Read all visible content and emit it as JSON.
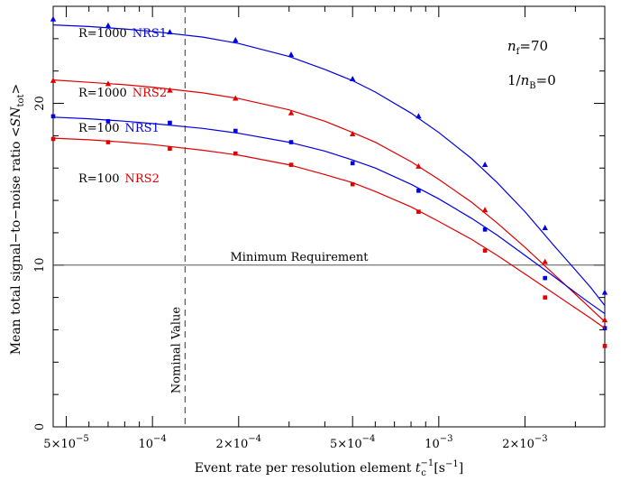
{
  "chart_data": {
    "type": "line",
    "xscale": "log",
    "xlim": [
      4.5e-05,
      0.0038
    ],
    "ylim": [
      0,
      26
    ],
    "xlabel": {
      "prefix": "Event rate per resolution element ",
      "sym": "t",
      "sub": "c",
      "sup": "−1",
      "unit": " [s",
      "unit_sup": "−1",
      "unit_end": "]"
    },
    "ylabel": {
      "prefix": "Mean total signal−to−noise ratio <",
      "sym": "SN",
      "sub": "tot",
      "suffix": ">"
    },
    "x_tick_labels": [
      {
        "x": 5e-05,
        "mant": "5×10",
        "exp": "−5"
      },
      {
        "x": 0.0001,
        "mant": "10",
        "exp": "−4"
      },
      {
        "x": 0.0002,
        "mant": "2×10",
        "exp": "−4"
      },
      {
        "x": 0.0005,
        "mant": "5×10",
        "exp": "−4"
      },
      {
        "x": 0.001,
        "mant": "10",
        "exp": "−3"
      },
      {
        "x": 0.002,
        "mant": "2×10",
        "exp": "−3"
      }
    ],
    "x_minor_ticks": [
      6e-05,
      7e-05,
      8e-05,
      9e-05,
      0.0003,
      0.0004,
      0.0006,
      0.0007,
      0.0008,
      0.0009,
      0.003
    ],
    "y_ticks": [
      0,
      10,
      20
    ],
    "y_minor_step": 2,
    "hline": {
      "y": 10,
      "label": "Minimum Requirement"
    },
    "vline": {
      "x": 0.00013,
      "label": "Nominal Value"
    },
    "annotations": {
      "nf": {
        "sym": "n",
        "sub": "f",
        "rest": "=70"
      },
      "nb": {
        "pre": "1/",
        "sym": "n",
        "sub": "B",
        "rest": "=0"
      }
    },
    "series": [
      {
        "name": "R=1000 NRS1",
        "label_left": "R=1000",
        "label_right": "NRS1",
        "color": "#0000e0",
        "marker": "triangle",
        "x": [
          4.5e-05,
          7e-05,
          0.000115,
          0.000195,
          0.000305,
          0.0005,
          0.00085,
          0.00145,
          0.00235,
          0.0038
        ],
        "y": [
          25.2,
          24.8,
          24.4,
          23.9,
          23.0,
          21.5,
          19.2,
          16.2,
          12.3,
          8.3
        ],
        "fit_x": [
          4.5e-05,
          6e-05,
          8e-05,
          0.0001,
          0.00015,
          0.0002,
          0.0003,
          0.0004,
          0.0005,
          0.0006,
          0.0008,
          0.001,
          0.0013,
          0.0016,
          0.002,
          0.0025,
          0.003,
          0.0034,
          0.0038
        ],
        "fit_y": [
          24.85,
          24.75,
          24.6,
          24.45,
          24.1,
          23.7,
          22.9,
          22.1,
          21.4,
          20.7,
          19.4,
          18.2,
          16.6,
          15.1,
          13.3,
          11.3,
          9.7,
          8.6,
          7.5
        ]
      },
      {
        "name": "R=1000 NRS2",
        "label_left": "R=1000",
        "label_right": "NRS2",
        "color": "#e00000",
        "marker": "triangle",
        "x": [
          4.5e-05,
          7e-05,
          0.000115,
          0.000195,
          0.000305,
          0.0005,
          0.00085,
          0.00145,
          0.00235,
          0.0038
        ],
        "y": [
          21.4,
          21.2,
          20.8,
          20.3,
          19.4,
          18.1,
          16.1,
          13.4,
          10.2,
          6.6
        ],
        "fit_x": [
          4.5e-05,
          6e-05,
          8e-05,
          0.0001,
          0.00015,
          0.0002,
          0.0003,
          0.0004,
          0.0005,
          0.0006,
          0.0008,
          0.001,
          0.0013,
          0.0016,
          0.002,
          0.0025,
          0.003,
          0.0034,
          0.0038
        ],
        "fit_y": [
          21.45,
          21.3,
          21.15,
          21.0,
          20.65,
          20.3,
          19.6,
          18.9,
          18.2,
          17.6,
          16.4,
          15.3,
          13.9,
          12.6,
          11.1,
          9.5,
          8.2,
          7.3,
          6.5
        ]
      },
      {
        "name": "R=100 NRS1",
        "label_left": "R=100",
        "label_right": "NRS1",
        "color": "#0000e0",
        "marker": "square",
        "x": [
          4.5e-05,
          7e-05,
          0.000115,
          0.000195,
          0.000305,
          0.0005,
          0.00085,
          0.00145,
          0.00235,
          0.0038
        ],
        "y": [
          19.2,
          18.9,
          18.8,
          18.3,
          17.6,
          16.3,
          14.6,
          12.2,
          9.2,
          6.1
        ],
        "fit_x": [
          4.5e-05,
          6e-05,
          8e-05,
          0.0001,
          0.00015,
          0.0002,
          0.0003,
          0.0004,
          0.0005,
          0.0006,
          0.0008,
          0.001,
          0.0013,
          0.0016,
          0.002,
          0.0025,
          0.003,
          0.0034,
          0.0038
        ],
        "fit_y": [
          19.15,
          19.05,
          18.9,
          18.75,
          18.45,
          18.15,
          17.6,
          17.05,
          16.5,
          16.0,
          15.0,
          14.1,
          12.9,
          11.85,
          10.6,
          9.35,
          8.3,
          7.6,
          7.0
        ]
      },
      {
        "name": "R=100 NRS2",
        "label_left": "R=100",
        "label_right": "NRS2",
        "color": "#e00000",
        "marker": "square",
        "x": [
          4.5e-05,
          7e-05,
          0.000115,
          0.000195,
          0.000305,
          0.0005,
          0.00085,
          0.00145,
          0.00235,
          0.0038
        ],
        "y": [
          17.8,
          17.6,
          17.2,
          16.9,
          16.2,
          15.0,
          13.3,
          10.9,
          8.0,
          5.0
        ],
        "fit_x": [
          4.5e-05,
          6e-05,
          8e-05,
          0.0001,
          0.00015,
          0.0002,
          0.0003,
          0.0004,
          0.0005,
          0.0006,
          0.0008,
          0.001,
          0.0013,
          0.0016,
          0.002,
          0.0025,
          0.003,
          0.0034,
          0.0038
        ],
        "fit_y": [
          17.85,
          17.75,
          17.6,
          17.45,
          17.1,
          16.8,
          16.2,
          15.6,
          15.1,
          14.55,
          13.6,
          12.7,
          11.6,
          10.6,
          9.45,
          8.3,
          7.35,
          6.7,
          6.1
        ]
      }
    ]
  }
}
